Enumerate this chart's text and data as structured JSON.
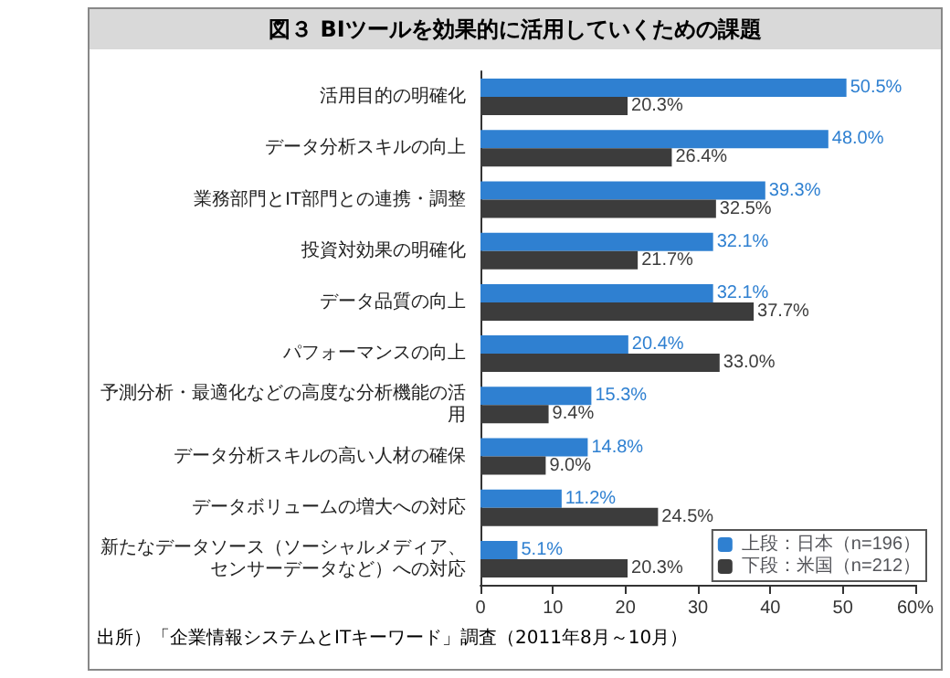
{
  "chart_data": {
    "type": "bar",
    "orientation": "horizontal",
    "title": "図３ BIツールを効果的に活用していくための課題",
    "categories": [
      "活用目的の明確化",
      "データ分析スキルの向上",
      "業務部門とIT部門との連携・調整",
      "投資対効果の明確化",
      "データ品質の向上",
      "パフォーマンスの向上",
      "予測分析・最適化などの高度な分析機能の活用",
      "データ分析スキルの高い人材の確保",
      "データボリュームの増大への対応",
      "新たなデータソース（ソーシャルメディア、センサーデータなど）への対応"
    ],
    "series": [
      {
        "name": "上段：日本（n=196）",
        "color": "#2f80d1",
        "values": [
          50.5,
          48.0,
          39.3,
          32.1,
          32.1,
          20.4,
          15.3,
          14.8,
          11.2,
          5.1
        ],
        "value_labels": [
          "50.5%",
          "48.0%",
          "39.3%",
          "32.1%",
          "32.1%",
          "20.4%",
          "15.3%",
          "14.8%",
          "11.2%",
          "5.1%"
        ]
      },
      {
        "name": "下段：米国（n=212）",
        "color": "#3c3c3c",
        "values": [
          20.3,
          26.4,
          32.5,
          21.7,
          37.7,
          33.0,
          9.4,
          9.0,
          24.5,
          20.3
        ],
        "value_labels": [
          "20.3%",
          "26.4%",
          "32.5%",
          "21.7%",
          "37.7%",
          "33.0%",
          "9.4%",
          "9.0%",
          "24.5%",
          "20.3%"
        ]
      }
    ],
    "xlim": [
      0,
      60
    ],
    "xticks": [
      0,
      10,
      20,
      30,
      40,
      50,
      {
        "value": 60,
        "label": "60%"
      }
    ],
    "grid": false,
    "legend": "bottom right",
    "annotations": [
      "出所）「企業情報システムとITキーワード」調査（2011年8月～10月）"
    ]
  }
}
